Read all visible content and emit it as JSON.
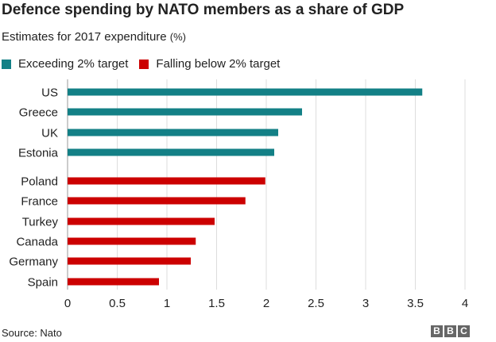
{
  "header": {
    "title": "Defence spending by NATO members as a share of GDP",
    "subtitle": "Estimates for 2017 expenditure",
    "unit": "(%)"
  },
  "legend": [
    {
      "label": "Exceeding 2% target",
      "color": "#138086"
    },
    {
      "label": "Falling below 2% target",
      "color": "#cc0000"
    }
  ],
  "footer": {
    "source": "Source: Nato",
    "logo_letters": [
      "B",
      "B",
      "C"
    ]
  },
  "chart_data": {
    "type": "bar",
    "orientation": "horizontal",
    "title": "Defence spending by NATO members as a share of GDP",
    "subtitle": "Estimates for 2017 expenditure (%)",
    "xlim": [
      0,
      4
    ],
    "x_ticks": [
      0,
      0.5,
      1,
      1.5,
      2,
      2.5,
      3,
      3.5,
      4
    ],
    "x_tick_labels": [
      "0",
      "0.5",
      "1",
      "1.5",
      "2",
      "2.5",
      "3",
      "3.5",
      "4"
    ],
    "grid": true,
    "legend_position": "top-left",
    "groups": [
      {
        "name": "Exceeding 2% target",
        "color": "#138086",
        "categories": [
          "US",
          "Greece",
          "UK",
          "Estonia"
        ],
        "values": [
          3.57,
          2.36,
          2.12,
          2.08
        ]
      },
      {
        "name": "Falling below 2% target",
        "color": "#cc0000",
        "categories": [
          "Poland",
          "France",
          "Turkey",
          "Canada",
          "Germany",
          "Spain"
        ],
        "values": [
          1.99,
          1.79,
          1.48,
          1.29,
          1.24,
          0.92
        ]
      }
    ]
  }
}
